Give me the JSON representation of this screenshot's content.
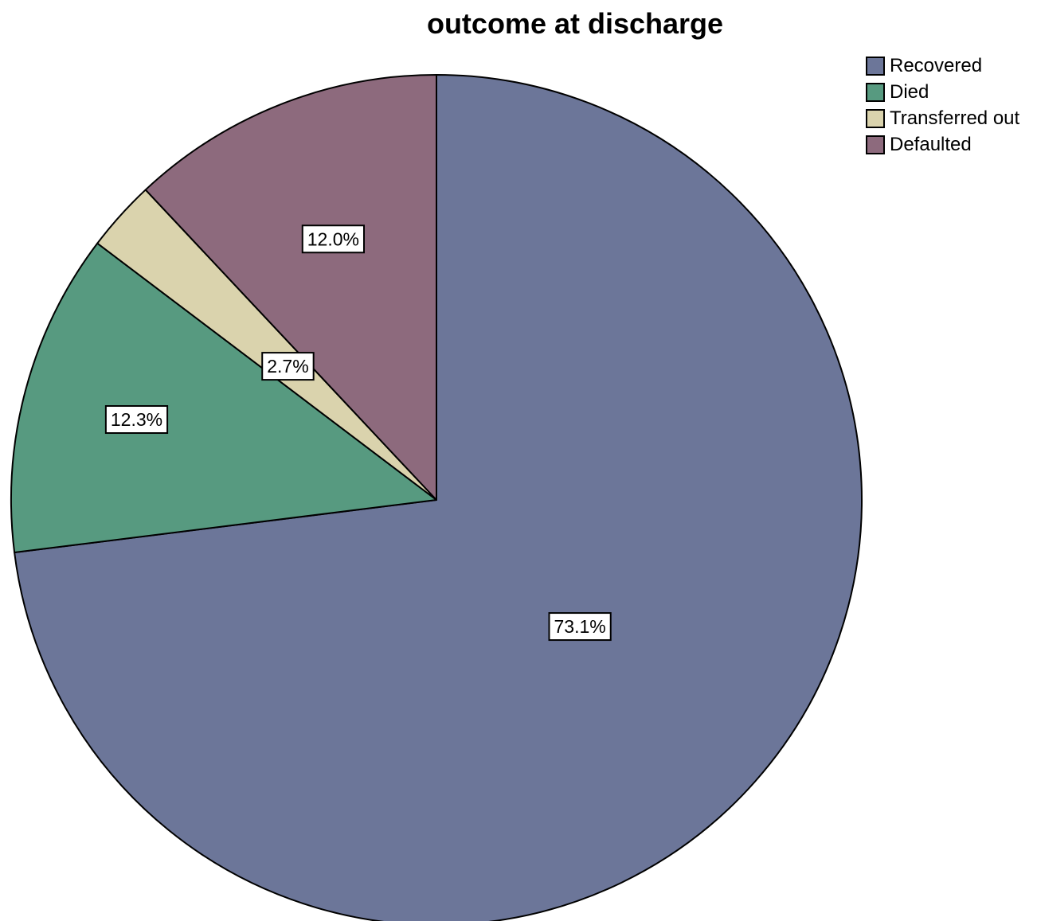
{
  "chart_data": {
    "type": "pie",
    "title": "outcome at discharge",
    "categories": [
      "Recovered",
      "Died",
      "Transferred out",
      "Defaulted"
    ],
    "values": [
      73.1,
      12.3,
      2.7,
      12.0
    ],
    "value_labels": [
      "73.1%",
      "12.3%",
      "2.7%",
      "12.0%"
    ],
    "colors": [
      "#6c7699",
      "#579a80",
      "#dad3ad",
      "#8d6a7d"
    ],
    "start_angle": "12 o'clock",
    "direction": "clockwise",
    "legend_position": "top-right"
  }
}
